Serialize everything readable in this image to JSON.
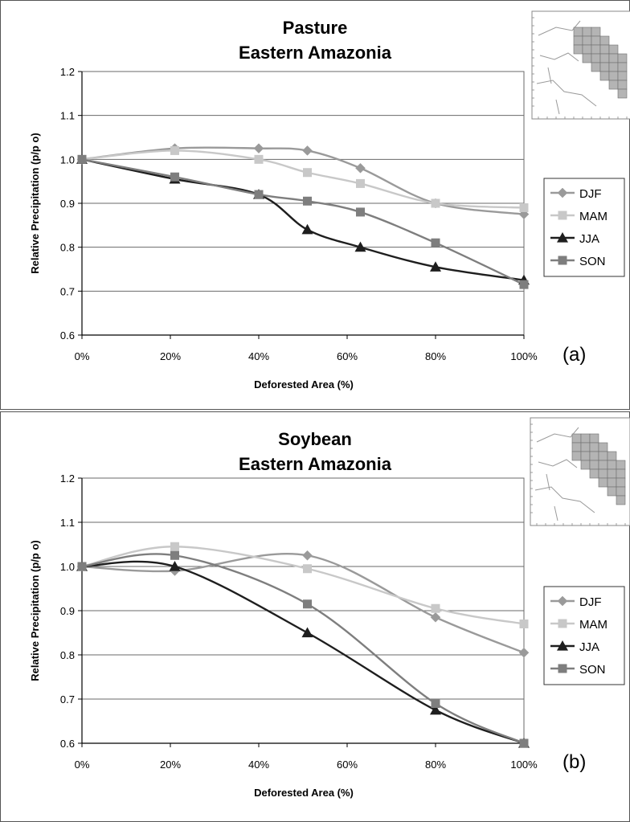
{
  "chart_data": [
    {
      "type": "line",
      "panel_label": "(a)",
      "title": [
        "Pasture",
        "Eastern Amazonia"
      ],
      "xlabel": "Deforested Area (%)",
      "ylabel": "Relative Precipitation (p/p o)",
      "xlim": [
        0,
        100
      ],
      "ylim": [
        0.6,
        1.2
      ],
      "xticks": [
        "0%",
        "20%",
        "40%",
        "60%",
        "80%",
        "100%"
      ],
      "yticks": [
        "0.6",
        "0.7",
        "0.8",
        "0.9",
        "1.0",
        "1.1",
        "1.2"
      ],
      "grid": "horizontal",
      "legend_position": "right",
      "series": [
        {
          "name": "DJF",
          "color": "#9a9a9a",
          "marker": "diamond",
          "x": [
            0,
            21,
            40,
            51,
            63,
            80,
            100
          ],
          "y": [
            1.0,
            1.025,
            1.025,
            1.02,
            0.98,
            0.9,
            0.875
          ]
        },
        {
          "name": "MAM",
          "color": "#c8c8c8",
          "marker": "square",
          "x": [
            0,
            21,
            40,
            51,
            63,
            80,
            100
          ],
          "y": [
            1.0,
            1.02,
            1.0,
            0.97,
            0.945,
            0.9,
            0.89
          ]
        },
        {
          "name": "JJA",
          "color": "#1e1e1e",
          "marker": "triangle",
          "x": [
            0,
            21,
            40,
            51,
            63,
            80,
            100
          ],
          "y": [
            1.0,
            0.955,
            0.92,
            0.84,
            0.8,
            0.755,
            0.725
          ]
        },
        {
          "name": "SON",
          "color": "#7e7e7e",
          "marker": "square",
          "x": [
            0,
            21,
            40,
            51,
            63,
            80,
            100
          ],
          "y": [
            1.0,
            0.96,
            0.92,
            0.905,
            0.88,
            0.81,
            0.715
          ]
        }
      ]
    },
    {
      "type": "line",
      "panel_label": "(b)",
      "title": [
        "Soybean",
        "Eastern Amazonia"
      ],
      "xlabel": "Deforested Area (%)",
      "ylabel": "Relative Precipitation (p/p o)",
      "xlim": [
        0,
        100
      ],
      "ylim": [
        0.6,
        1.2
      ],
      "xticks": [
        "0%",
        "20%",
        "40%",
        "60%",
        "80%",
        "100%"
      ],
      "yticks": [
        "0.6",
        "0.7",
        "0.8",
        "0.9",
        "1.0",
        "1.1",
        "1.2"
      ],
      "grid": "horizontal",
      "legend_position": "right",
      "series": [
        {
          "name": "DJF",
          "color": "#9a9a9a",
          "marker": "diamond",
          "x": [
            0,
            21,
            51,
            80,
            100
          ],
          "y": [
            1.0,
            0.99,
            1.025,
            0.885,
            0.805
          ]
        },
        {
          "name": "MAM",
          "color": "#c8c8c8",
          "marker": "square",
          "x": [
            0,
            21,
            51,
            80,
            100
          ],
          "y": [
            1.0,
            1.045,
            0.995,
            0.905,
            0.87
          ]
        },
        {
          "name": "JJA",
          "color": "#1e1e1e",
          "marker": "triangle",
          "x": [
            0,
            21,
            51,
            80,
            100
          ],
          "y": [
            1.0,
            1.0,
            0.85,
            0.675,
            0.6
          ]
        },
        {
          "name": "SON",
          "color": "#7e7e7e",
          "marker": "square",
          "x": [
            0,
            21,
            51,
            80,
            100
          ],
          "y": [
            1.0,
            1.025,
            0.915,
            0.69,
            0.6
          ]
        }
      ]
    }
  ]
}
